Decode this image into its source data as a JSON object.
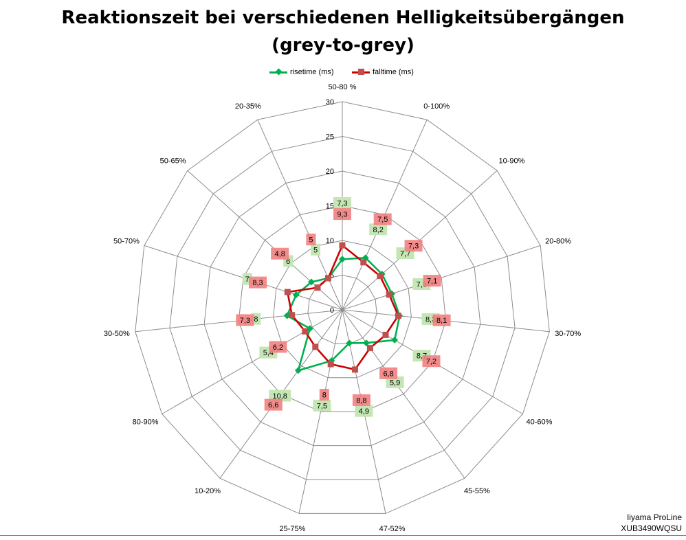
{
  "chart_data": {
    "type": "radar",
    "title_line1": "Reaktionszeit bei verschiedenen Helligkeitsübergängen",
    "title_line2": "(grey-to-grey)",
    "categories": [
      "50-80 %",
      "0-100%",
      "10-90%",
      "20-80%",
      "30-70%",
      "40-60%",
      "45-55%",
      "47-52%",
      "25-75%",
      "10-20%",
      "80-90%",
      "30-50%",
      "50-70%",
      "50-65%",
      "20-35%"
    ],
    "rlim": [
      0,
      30
    ],
    "ticks": [
      0,
      5,
      10,
      15,
      20,
      25,
      30
    ],
    "grid": true,
    "legend_position": "top",
    "series": [
      {
        "name": "risetime (ms)",
        "color": "#00b050",
        "label_bg": "#c4e6b4",
        "marker": "diamond",
        "values": [
          7.3,
          8.2,
          7.7,
          7.5,
          8.3,
          8.7,
          5.9,
          4.9,
          7.5,
          10.8,
          5.4,
          8.0,
          7.0,
          6.0,
          5.0
        ],
        "labels": [
          "7,3",
          "8,2",
          "7,7",
          "7,5",
          "8,3",
          "8,7",
          "5,9",
          "4,9",
          "7,5",
          "10,8",
          "5,4",
          "8",
          "7",
          "6",
          "5"
        ]
      },
      {
        "name": "falltime (ms)",
        "color": "#cc0000",
        "label_bg": "#f28080",
        "marker": "square",
        "values": [
          9.3,
          7.5,
          7.3,
          7.1,
          8.1,
          7.2,
          6.8,
          8.8,
          8.0,
          6.6,
          6.2,
          7.3,
          8.3,
          4.8,
          5.0
        ],
        "labels": [
          "9,3",
          "7,5",
          "7,3",
          "7,1",
          "8,1",
          "7,2",
          "6,8",
          "8,8",
          "8",
          "6,6",
          "6,2",
          "7,3",
          "8,3",
          "4,8",
          "5"
        ]
      }
    ]
  },
  "watermark": {
    "line1": "Iiyama ProLine",
    "line2": "XUB3490WQSU"
  }
}
